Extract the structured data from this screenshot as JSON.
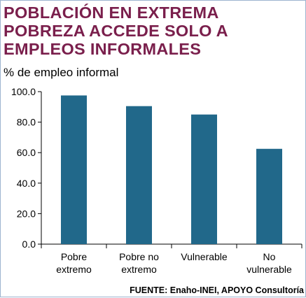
{
  "title_lines": [
    "POBLACIÓN EN EXTREMA",
    "POBREZA ACCEDE SOLO A",
    "EMPLEOS INFORMALES"
  ],
  "source": "FUENTE: Enaho-INEI, APOYO Consultoría",
  "colors": {
    "bar": "#21688a",
    "title": "#7a1f4c",
    "axis": "#000000"
  },
  "chart_data": {
    "type": "bar",
    "title": "POBLACIÓN EN EXTREMA POBREZA ACCEDE SOLO A EMPLEOS INFORMALES",
    "ylabel": "% de empleo informal",
    "xlabel": "",
    "categories": [
      [
        "Pobre",
        "extremo"
      ],
      [
        "Pobre no",
        "extremo"
      ],
      [
        "Vulnerable"
      ],
      [
        "No",
        "vulnerable"
      ]
    ],
    "values": [
      97.5,
      90.5,
      85.0,
      62.5
    ],
    "ylim": [
      0,
      100
    ],
    "yticks": [
      "0.0",
      "20.0",
      "40.0",
      "60.0",
      "80.0",
      "100.0"
    ],
    "grid": false,
    "legend": "none"
  }
}
